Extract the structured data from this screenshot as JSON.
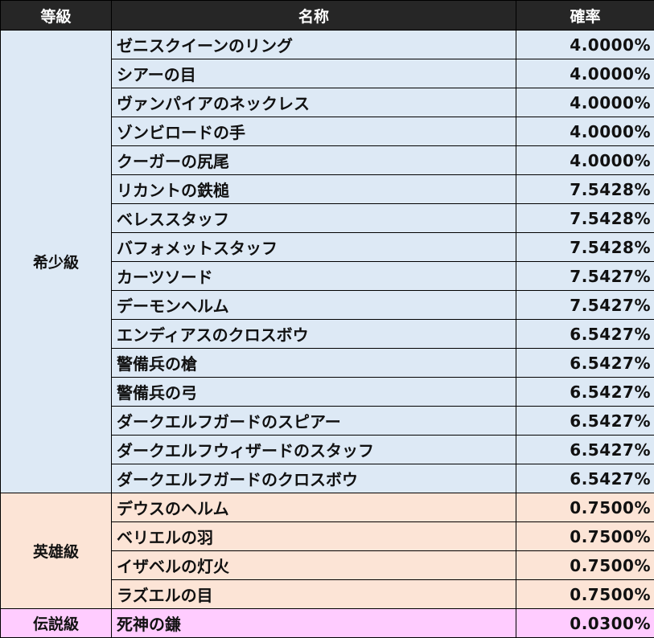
{
  "header": {
    "grade": "等級",
    "name": "名称",
    "rate": "確率"
  },
  "colors": {
    "header_bg": "#262626",
    "rare_bg": "#dde9f5",
    "hero_bg": "#fce4d6",
    "legend_bg": "#ffccff"
  },
  "groups": [
    {
      "grade": "希少級",
      "class": "rare",
      "items": [
        {
          "name": "ゼニスクイーンのリング",
          "rate": "4.0000%"
        },
        {
          "name": "シアーの目",
          "rate": "4.0000%"
        },
        {
          "name": "ヴァンパイアのネックレス",
          "rate": "4.0000%"
        },
        {
          "name": "ゾンビロードの手",
          "rate": "4.0000%"
        },
        {
          "name": "クーガーの尻尾",
          "rate": "4.0000%"
        },
        {
          "name": "リカントの鉄槌",
          "rate": "7.5428%"
        },
        {
          "name": "ベレススタッフ",
          "rate": "7.5428%"
        },
        {
          "name": "バフォメットスタッフ",
          "rate": "7.5428%"
        },
        {
          "name": "カーツソード",
          "rate": "7.5427%"
        },
        {
          "name": "デーモンヘルム",
          "rate": "7.5427%"
        },
        {
          "name": "エンディアスのクロスボウ",
          "rate": "6.5427%"
        },
        {
          "name": "警備兵の槍",
          "rate": "6.5427%"
        },
        {
          "name": "警備兵の弓",
          "rate": "6.5427%"
        },
        {
          "name": "ダークエルフガードのスピアー",
          "rate": "6.5427%"
        },
        {
          "name": "ダークエルフウィザードのスタッフ",
          "rate": "6.5427%"
        },
        {
          "name": "ダークエルフガードのクロスボウ",
          "rate": "6.5427%"
        }
      ]
    },
    {
      "grade": "英雄級",
      "class": "hero",
      "items": [
        {
          "name": "デウスのヘルム",
          "rate": "0.7500%"
        },
        {
          "name": "ベリエルの羽",
          "rate": "0.7500%"
        },
        {
          "name": "イザベルの灯火",
          "rate": "0.7500%"
        },
        {
          "name": "ラズエルの目",
          "rate": "0.7500%"
        }
      ]
    },
    {
      "grade": "伝説級",
      "class": "legend",
      "items": [
        {
          "name": "死神の鎌",
          "rate": "0.0300%"
        }
      ]
    }
  ]
}
